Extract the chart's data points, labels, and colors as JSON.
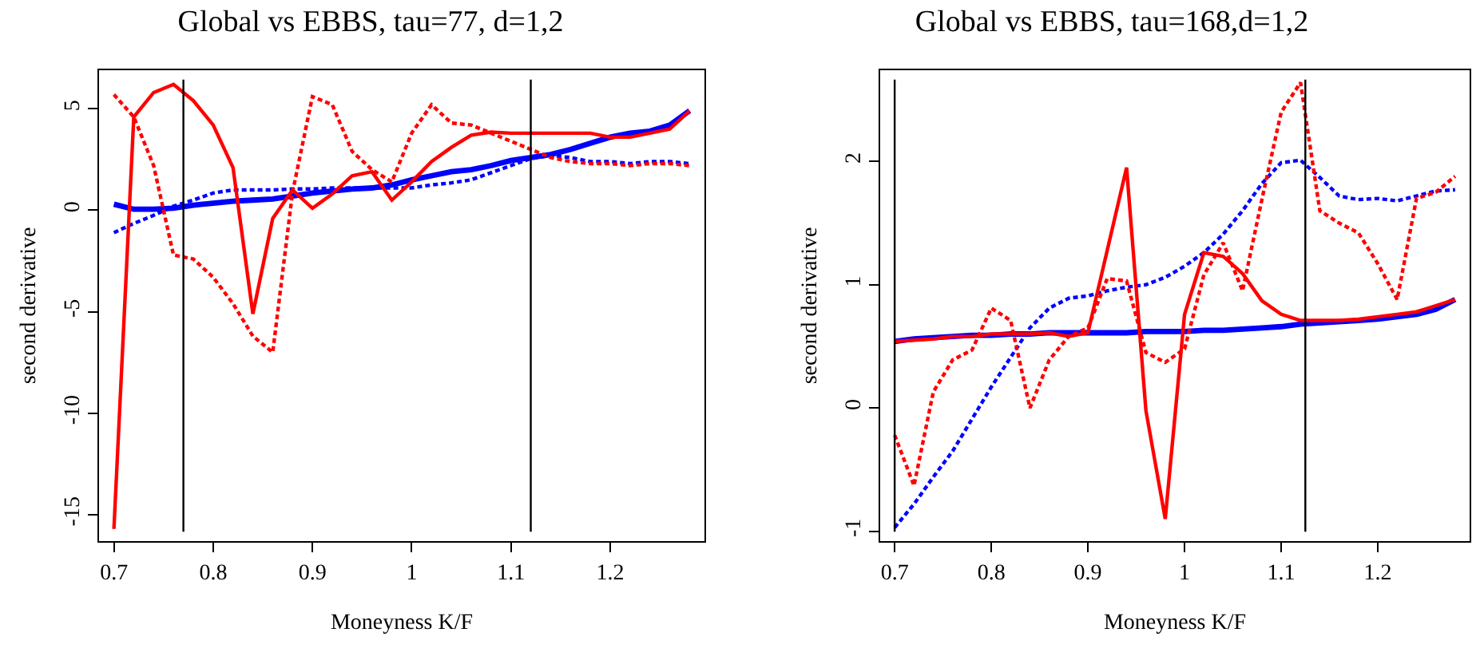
{
  "chart_data": [
    {
      "type": "line",
      "title": "Global vs EBBS, tau=77, d=1,2",
      "xlabel": "Moneyness K/F",
      "ylabel": "second derivative",
      "x": [
        0.7,
        0.72,
        0.74,
        0.76,
        0.78,
        0.8,
        0.82,
        0.84,
        0.86,
        0.88,
        0.9,
        0.92,
        0.94,
        0.96,
        0.98,
        1.0,
        1.02,
        1.04,
        1.06,
        1.08,
        1.1,
        1.12,
        1.14,
        1.16,
        1.18,
        1.2,
        1.22,
        1.24,
        1.26,
        1.28
      ],
      "xlim": [
        0.685,
        1.295
      ],
      "xticks": [
        0.7,
        0.8,
        0.9,
        1,
        1.1,
        1.2
      ],
      "ylim": [
        -16.3,
        6.9
      ],
      "yticks": [
        -15,
        -10,
        -5,
        0,
        5
      ],
      "series": [
        {
          "color": "#0000ff",
          "line_style": "solid",
          "values": [
            0.3,
            0.05,
            0.05,
            0.1,
            0.25,
            0.35,
            0.45,
            0.5,
            0.55,
            0.7,
            0.85,
            0.95,
            1.05,
            1.1,
            1.25,
            1.5,
            1.7,
            1.9,
            2.0,
            2.2,
            2.45,
            2.6,
            2.75,
            3.0,
            3.3,
            3.6,
            3.8,
            3.9,
            4.2,
            4.9
          ]
        },
        {
          "color": "#0000ff",
          "line_style": "dashed",
          "values": [
            -1.1,
            -0.65,
            -0.25,
            0.2,
            0.5,
            0.85,
            1.0,
            1.0,
            1.0,
            1.05,
            1.05,
            1.1,
            1.1,
            1.1,
            1.1,
            1.1,
            1.25,
            1.35,
            1.5,
            1.85,
            2.2,
            2.55,
            2.7,
            2.6,
            2.4,
            2.4,
            2.3,
            2.4,
            2.4,
            2.3
          ]
        },
        {
          "color": "#ff0000",
          "line_style": "solid",
          "values": [
            -15.7,
            4.6,
            5.8,
            6.2,
            5.4,
            4.2,
            2.1,
            -5.1,
            -0.4,
            1.0,
            0.1,
            0.8,
            1.7,
            1.9,
            0.5,
            1.4,
            2.4,
            3.1,
            3.7,
            3.85,
            3.8,
            3.8,
            3.8,
            3.8,
            3.8,
            3.6,
            3.6,
            3.8,
            4.0,
            4.9
          ]
        },
        {
          "color": "#ff0000",
          "line_style": "dashed",
          "values": [
            5.7,
            4.6,
            2.2,
            -2.2,
            -2.4,
            -3.3,
            -4.6,
            -6.2,
            -7.0,
            0.9,
            5.6,
            5.2,
            2.9,
            2.0,
            1.4,
            3.8,
            5.2,
            4.3,
            4.2,
            3.8,
            3.4,
            3.0,
            2.6,
            2.4,
            2.3,
            2.3,
            2.2,
            2.3,
            2.3,
            2.2
          ]
        }
      ],
      "ref_lines": [
        {
          "axis": "x",
          "value": 0.77,
          "color": "#000000"
        },
        {
          "axis": "x",
          "value": 1.12,
          "color": "#000000"
        }
      ]
    },
    {
      "type": "line",
      "title": "Global vs EBBS, tau=168,d=1,2",
      "xlabel": "Moneyness K/F",
      "ylabel": "second derivative",
      "x": [
        0.7,
        0.72,
        0.74,
        0.76,
        0.78,
        0.8,
        0.82,
        0.84,
        0.86,
        0.88,
        0.9,
        0.92,
        0.94,
        0.96,
        0.98,
        1.0,
        1.02,
        1.04,
        1.06,
        1.08,
        1.1,
        1.12,
        1.14,
        1.16,
        1.18,
        1.2,
        1.22,
        1.24,
        1.26,
        1.28
      ],
      "xlim": [
        0.685,
        1.295
      ],
      "xticks": [
        0.7,
        0.8,
        0.9,
        1,
        1.1,
        1.2
      ],
      "ylim": [
        -1.08,
        2.74
      ],
      "yticks": [
        -1,
        0,
        1,
        2
      ],
      "series": [
        {
          "color": "#0000ff",
          "line_style": "solid",
          "values": [
            0.54,
            0.56,
            0.57,
            0.58,
            0.59,
            0.59,
            0.6,
            0.6,
            0.61,
            0.61,
            0.61,
            0.61,
            0.61,
            0.62,
            0.62,
            0.62,
            0.63,
            0.63,
            0.64,
            0.65,
            0.66,
            0.68,
            0.69,
            0.7,
            0.71,
            0.72,
            0.74,
            0.76,
            0.8,
            0.88
          ]
        },
        {
          "color": "#0000ff",
          "line_style": "dashed",
          "values": [
            -0.97,
            -0.78,
            -0.56,
            -0.35,
            -0.09,
            0.17,
            0.41,
            0.65,
            0.81,
            0.89,
            0.91,
            0.95,
            0.98,
            1.0,
            1.06,
            1.15,
            1.26,
            1.41,
            1.6,
            1.82,
            1.99,
            2.01,
            1.87,
            1.72,
            1.69,
            1.7,
            1.68,
            1.72,
            1.76,
            1.77
          ]
        },
        {
          "color": "#ff0000",
          "line_style": "solid",
          "values": [
            0.54,
            0.55,
            0.56,
            0.58,
            0.58,
            0.6,
            0.6,
            0.6,
            0.61,
            0.58,
            0.61,
            1.28,
            1.95,
            -0.02,
            -0.9,
            0.76,
            1.26,
            1.23,
            1.09,
            0.87,
            0.76,
            0.71,
            0.71,
            0.71,
            0.72,
            0.74,
            0.76,
            0.78,
            0.83,
            0.88
          ]
        },
        {
          "color": "#ff0000",
          "line_style": "dashed",
          "values": [
            -0.22,
            -0.63,
            0.13,
            0.39,
            0.47,
            0.81,
            0.71,
            0.0,
            0.39,
            0.58,
            0.65,
            1.05,
            1.03,
            0.45,
            0.37,
            0.48,
            1.08,
            1.34,
            0.95,
            1.69,
            2.4,
            2.64,
            1.6,
            1.5,
            1.42,
            1.17,
            0.88,
            1.7,
            1.75,
            1.88
          ]
        }
      ],
      "ref_lines": [
        {
          "axis": "x",
          "value": 0.7,
          "color": "#000000"
        },
        {
          "axis": "x",
          "value": 1.125,
          "color": "#000000"
        }
      ]
    }
  ]
}
